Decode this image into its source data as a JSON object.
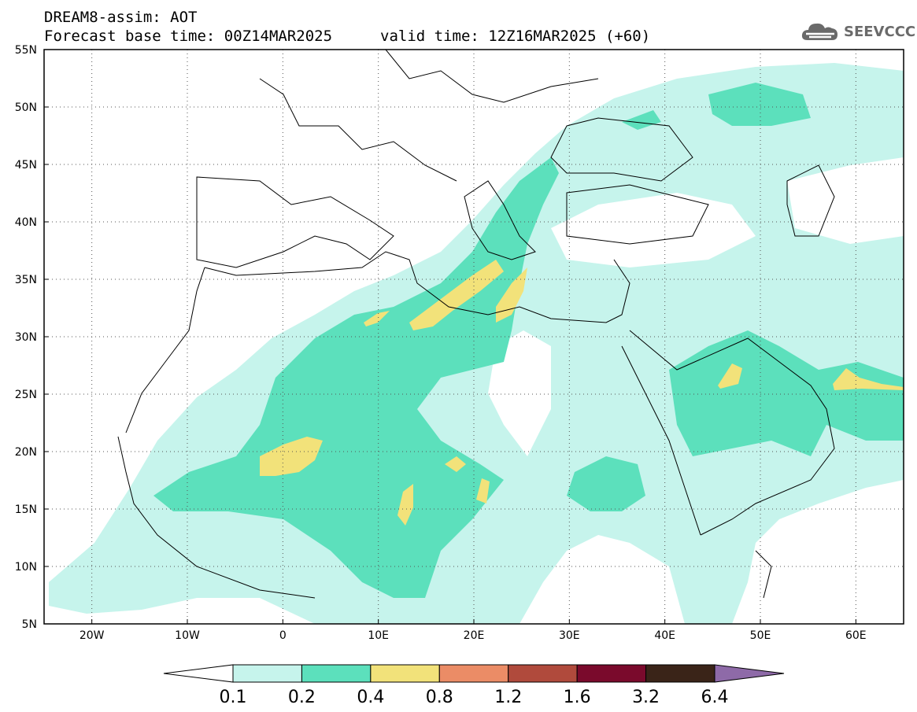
{
  "header": {
    "model": "DREAM8-assim: AOT",
    "base_time": "Forecast base time: 00Z14MAR2025",
    "valid_time": "valid time: 12Z16MAR2025 (+60)"
  },
  "logo": {
    "text": "SEEVCCC",
    "icon": "cloud-icon",
    "color": "#6a6a6a"
  },
  "map": {
    "lon_range": [
      -25,
      65
    ],
    "lat_range": [
      5,
      55
    ],
    "lon_ticks": [
      {
        "value": -20,
        "label": "20W"
      },
      {
        "value": -10,
        "label": "10W"
      },
      {
        "value": 0,
        "label": "0"
      },
      {
        "value": 10,
        "label": "10E"
      },
      {
        "value": 20,
        "label": "20E"
      },
      {
        "value": 30,
        "label": "30E"
      },
      {
        "value": 40,
        "label": "40E"
      },
      {
        "value": 50,
        "label": "50E"
      },
      {
        "value": 60,
        "label": "60E"
      }
    ],
    "lat_ticks": [
      {
        "value": 5,
        "label": "5N"
      },
      {
        "value": 10,
        "label": "10N"
      },
      {
        "value": 15,
        "label": "15N"
      },
      {
        "value": 20,
        "label": "20N"
      },
      {
        "value": 25,
        "label": "25N"
      },
      {
        "value": 30,
        "label": "30N"
      },
      {
        "value": 35,
        "label": "35N"
      },
      {
        "value": 40,
        "label": "40N"
      },
      {
        "value": 45,
        "label": "45N"
      },
      {
        "value": 50,
        "label": "50N"
      },
      {
        "value": 55,
        "label": "55N"
      }
    ],
    "grid": "dotted"
  },
  "colorbar": {
    "labels": [
      "0.1",
      "0.2",
      "0.4",
      "0.8",
      "1.2",
      "1.6",
      "3.2",
      "6.4"
    ],
    "colors": [
      "#ffffff",
      "#c6f4ec",
      "#5ce0bc",
      "#f2e27a",
      "#eb8c66",
      "#b04a3c",
      "#7a0a2c",
      "#3a2418",
      "#8e6aa8"
    ]
  }
}
